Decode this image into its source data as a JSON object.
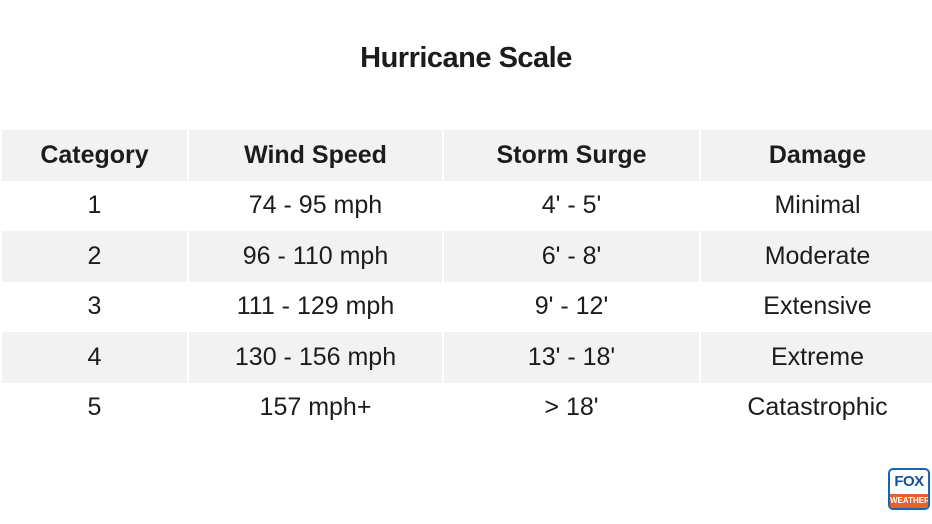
{
  "title": "Hurricane Scale",
  "table": {
    "headers": [
      "Category",
      "Wind Speed",
      "Storm Surge",
      "Damage"
    ],
    "rows": [
      [
        "1",
        "74 - 95 mph",
        "4' - 5'",
        "Minimal"
      ],
      [
        "2",
        "96 - 110 mph",
        "6' - 8'",
        "Moderate"
      ],
      [
        "3",
        "111 - 129 mph",
        "9' - 12'",
        "Extensive"
      ],
      [
        "4",
        "130 - 156 mph",
        "13' - 18'",
        "Extreme"
      ],
      [
        "5",
        "157 mph+",
        "> 18'",
        "Catastrophic"
      ]
    ]
  },
  "logo": {
    "line1": "FOX",
    "line2": "WEATHER"
  },
  "colors": {
    "header_bg": "#f2f2f2",
    "stripe_bg": "#f2f2f2",
    "logo_blue": "#1a63b4",
    "logo_orange": "#e8602a"
  }
}
